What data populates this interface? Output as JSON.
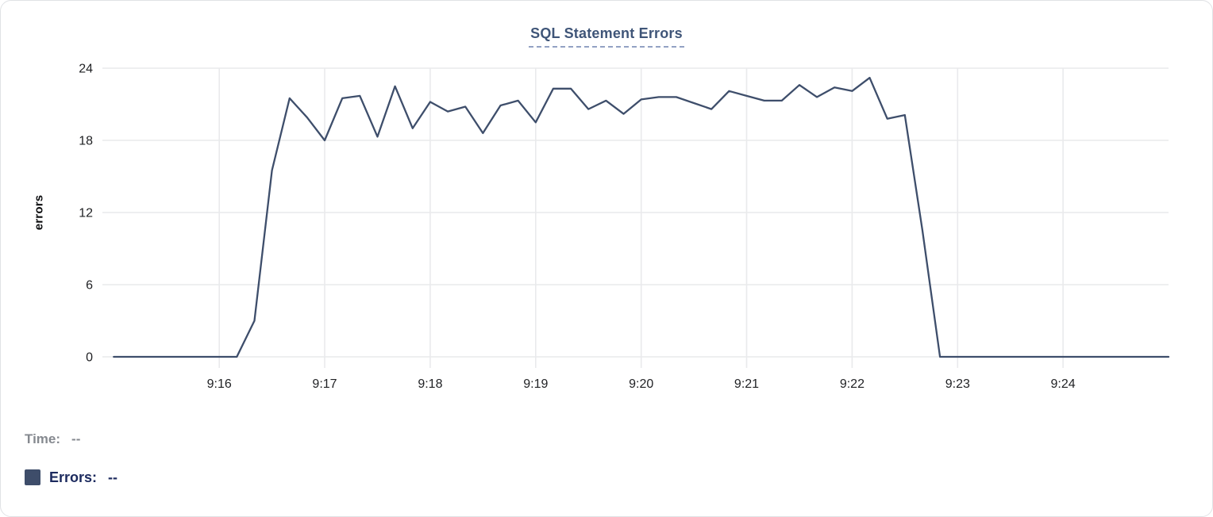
{
  "card": {
    "title": "SQL Statement Errors"
  },
  "readout": {
    "time_label": "Time:",
    "time_value": "--",
    "errors_label": "Errors:",
    "errors_value": "--"
  },
  "colors": {
    "series": "#3e4e6b",
    "swatch": "#3e4d6a",
    "title": "#3f5578",
    "title_underline": "#93a2c4",
    "grid": "#e9eaec",
    "tick_text": "#1f2023",
    "time_text": "#85898f",
    "errors_text": "#1c2a5e"
  },
  "chart_data": {
    "type": "line",
    "title": "SQL Statement Errors",
    "ylabel": "errors",
    "series_name": "Errors",
    "ylim": [
      0,
      24
    ],
    "yticks": [
      0,
      6,
      12,
      18,
      24
    ],
    "grid": true,
    "legend_position": "none",
    "xtick_labels": [
      "9:16",
      "9:17",
      "9:18",
      "9:19",
      "9:20",
      "9:21",
      "9:22",
      "9:23",
      "9:24"
    ],
    "xtick_indices": [
      6,
      12,
      18,
      24,
      30,
      36,
      42,
      48,
      54
    ],
    "x": [
      "9:15:00",
      "9:15:10",
      "9:15:20",
      "9:15:30",
      "9:15:40",
      "9:15:50",
      "9:16:00",
      "9:16:10",
      "9:16:20",
      "9:16:30",
      "9:16:40",
      "9:16:50",
      "9:17:00",
      "9:17:10",
      "9:17:20",
      "9:17:30",
      "9:17:40",
      "9:17:50",
      "9:18:00",
      "9:18:10",
      "9:18:20",
      "9:18:30",
      "9:18:40",
      "9:18:50",
      "9:19:00",
      "9:19:10",
      "9:19:20",
      "9:19:30",
      "9:19:40",
      "9:19:50",
      "9:20:00",
      "9:20:10",
      "9:20:20",
      "9:20:30",
      "9:20:40",
      "9:20:50",
      "9:21:00",
      "9:21:10",
      "9:21:20",
      "9:21:30",
      "9:21:40",
      "9:21:50",
      "9:22:00",
      "9:22:10",
      "9:22:20",
      "9:22:30",
      "9:22:40",
      "9:22:50",
      "9:23:00",
      "9:23:10",
      "9:23:20",
      "9:23:30",
      "9:23:40",
      "9:23:50",
      "9:24:00",
      "9:24:10",
      "9:24:20",
      "9:24:30",
      "9:24:40",
      "9:24:50",
      "9:25:00"
    ],
    "values": [
      0,
      0,
      0,
      0,
      0,
      0,
      0,
      0,
      3,
      15.5,
      21.5,
      19.9,
      18,
      21.5,
      21.7,
      18.3,
      22.5,
      19,
      21.2,
      20.4,
      20.8,
      18.6,
      20.9,
      21.3,
      19.5,
      22.3,
      22.3,
      20.6,
      21.3,
      20.2,
      21.4,
      21.6,
      21.6,
      21.1,
      20.6,
      22.1,
      21.7,
      21.3,
      21.3,
      22.6,
      21.6,
      22.4,
      22.1,
      23.2,
      19.8,
      20.1,
      10.5,
      0,
      0,
      0,
      0,
      0,
      0,
      0,
      0,
      0,
      0,
      0,
      0,
      0,
      0
    ]
  }
}
